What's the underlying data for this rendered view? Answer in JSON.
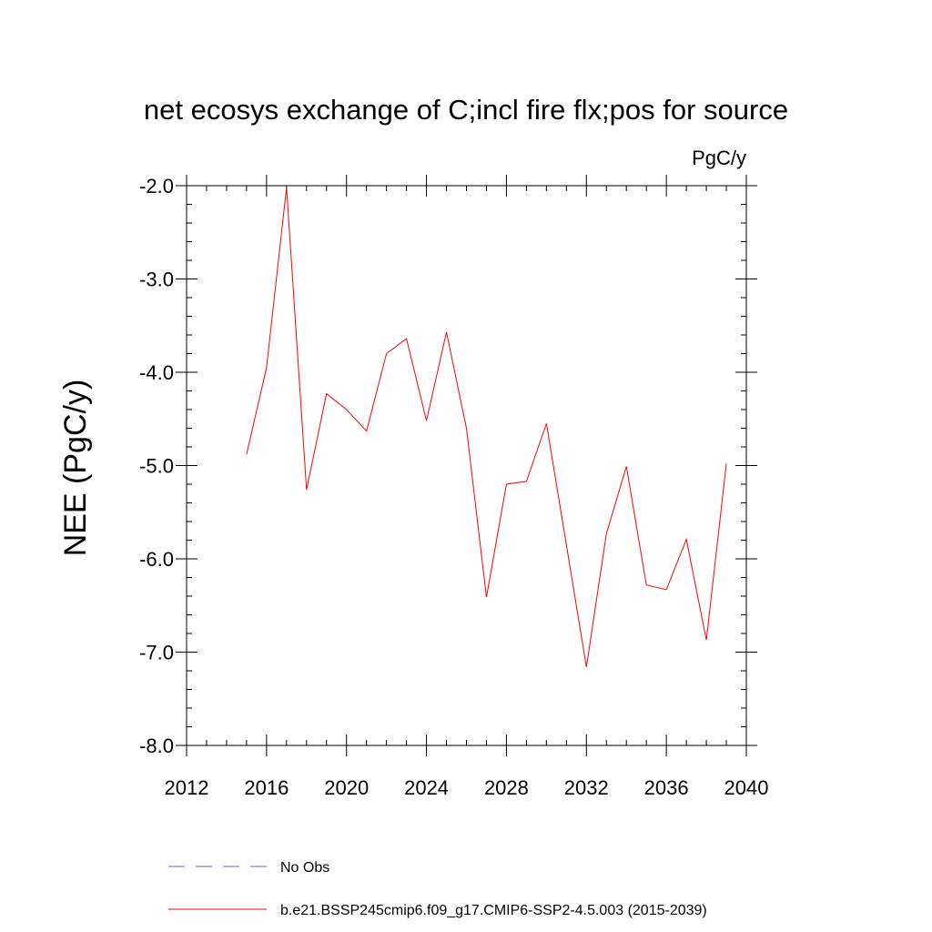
{
  "chart_data": {
    "type": "line",
    "title": "net ecosys exchange of C;incl fire flx;pos for source",
    "units_label": "PgC/y",
    "ylabel": "NEE  (PgC/y)",
    "xlabel": "",
    "xlim": [
      2012,
      2040
    ],
    "ylim": [
      -8.0,
      -2.0
    ],
    "x_ticks": [
      2012,
      2016,
      2020,
      2024,
      2028,
      2032,
      2036,
      2040
    ],
    "x_tick_labels": [
      "2012",
      "2016",
      "2020",
      "2024",
      "2028",
      "2032",
      "2036",
      "2040"
    ],
    "y_ticks": [
      -2.0,
      -3.0,
      -4.0,
      -5.0,
      -6.0,
      -7.0,
      -8.0
    ],
    "y_tick_labels": [
      "-2.0",
      "-3.0",
      "-4.0",
      "-5.0",
      "-6.0",
      "-7.0",
      "-8.0"
    ],
    "grid": false,
    "legend_position": "bottom",
    "series": [
      {
        "name": "b.e21.BSSP245cmip6.f09_g17.CMIP6-SSP2-4.5.003 (2015-2039)",
        "color": "#ff0000",
        "style": "solid",
        "x": [
          2015,
          2016,
          2017,
          2018,
          2019,
          2020,
          2021,
          2022,
          2023,
          2024,
          2025,
          2026,
          2027,
          2028,
          2029,
          2030,
          2031,
          2032,
          2033,
          2034,
          2035,
          2036,
          2037,
          2038,
          2039
        ],
        "values": [
          -4.88,
          -3.95,
          -2.02,
          -5.26,
          -4.23,
          -4.4,
          -4.63,
          -3.8,
          -3.64,
          -4.52,
          -3.57,
          -4.6,
          -6.41,
          -5.2,
          -5.17,
          -4.55,
          -5.85,
          -7.16,
          -5.73,
          -5.01,
          -6.28,
          -6.33,
          -5.79,
          -6.87,
          -4.98
        ]
      },
      {
        "name": "No Obs",
        "color": "#6a5acd",
        "style": "dashed",
        "x": [],
        "values": []
      }
    ]
  }
}
